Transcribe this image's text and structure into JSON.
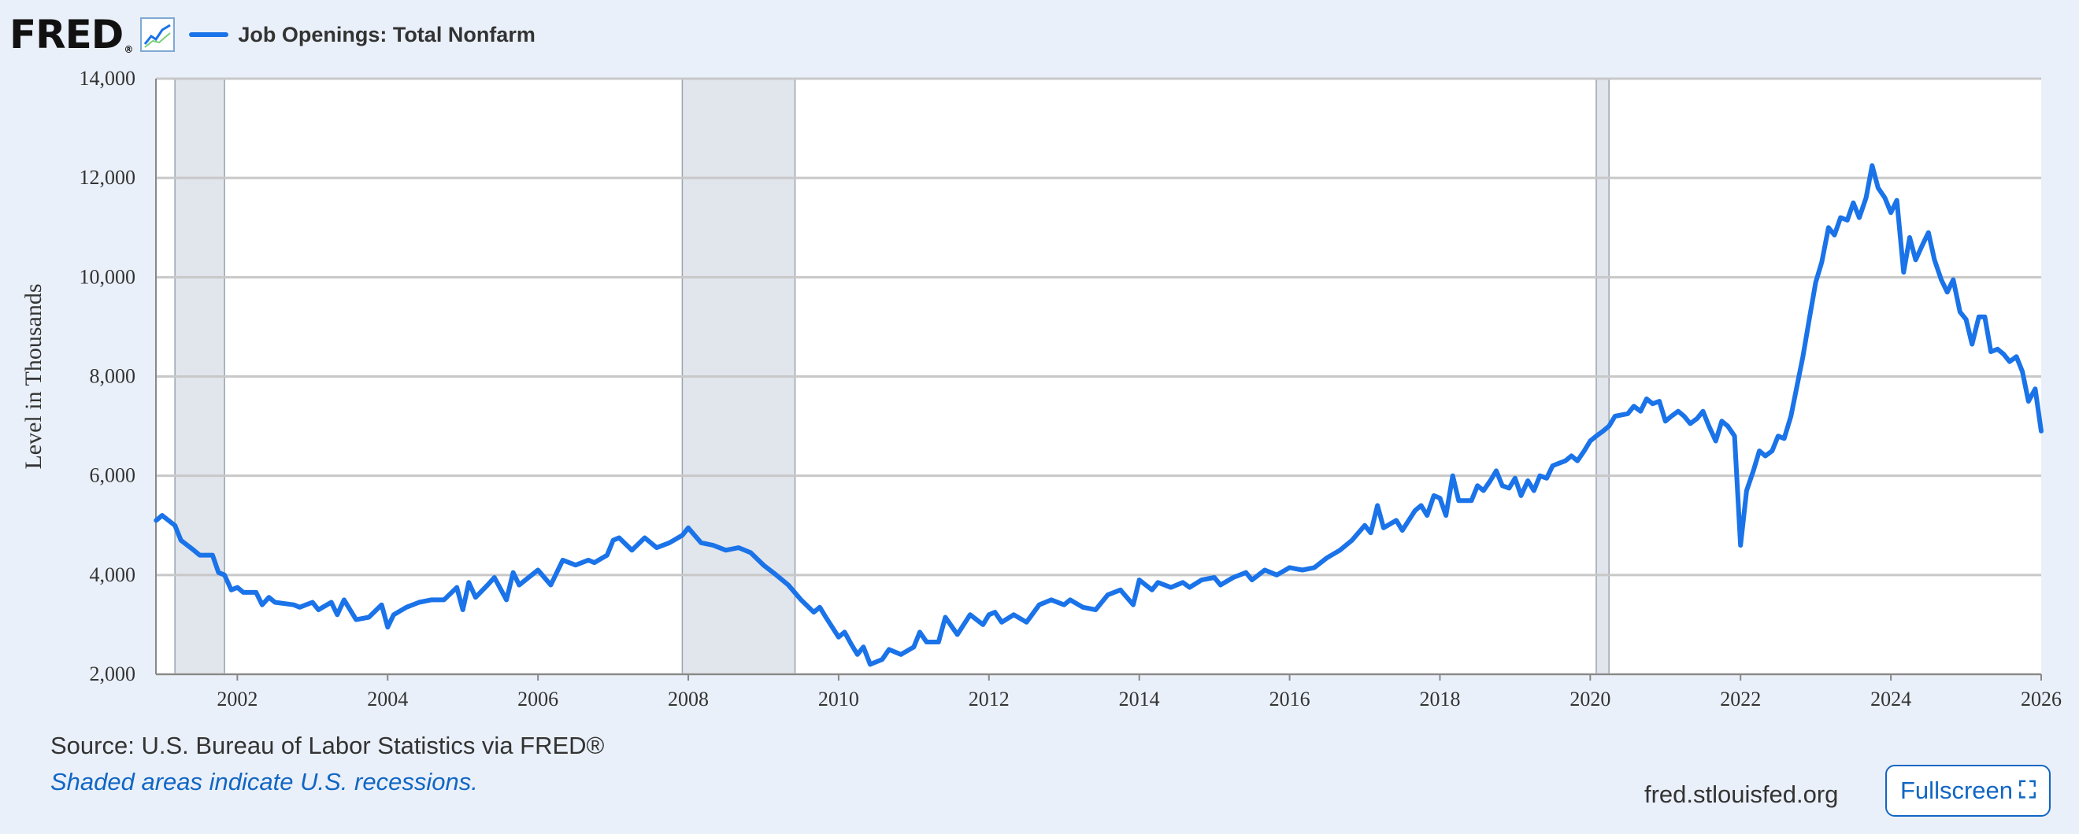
{
  "header": {
    "logo_text": "FRED",
    "logo_reg": "®",
    "logo_icon": "fred-chart-icon"
  },
  "footer": {
    "source": "Source: U.S. Bureau of Labor Statistics via FRED®",
    "note": "Shaded areas indicate U.S. recessions.",
    "site": "fred.stlouisfed.org",
    "fullscreen_label": "Fullscreen",
    "fullscreen_icon": "expand-icon"
  },
  "colors": {
    "series": "#1a73e8",
    "recession": "#e1e5ec",
    "background": "#eaf0f9",
    "link": "#1166c4"
  },
  "chart_data": {
    "type": "line",
    "title": "",
    "xlabel": "",
    "ylabel": "Level in Thousands",
    "xlim": [
      2000.917,
      2026.0
    ],
    "ylim": [
      2000,
      14000
    ],
    "x_ticks": [
      "2002",
      "2004",
      "2006",
      "2008",
      "2010",
      "2012",
      "2014",
      "2016",
      "2018",
      "2020",
      "2022",
      "2024",
      "2026"
    ],
    "y_ticks": [
      "2,000",
      "4,000",
      "6,000",
      "8,000",
      "10,000",
      "12,000",
      "14,000"
    ],
    "grid": true,
    "legend": "top-left",
    "recessions": [
      {
        "start": 2001.17,
        "end": 2001.83
      },
      {
        "start": 2007.92,
        "end": 2009.42
      },
      {
        "start": 2020.08,
        "end": 2020.25
      }
    ],
    "series": [
      {
        "name": "Job Openings: Total Nonfarm",
        "points": [
          [
            2000.92,
            5100
          ],
          [
            2001.0,
            5200
          ],
          [
            2001.17,
            5000
          ],
          [
            2001.25,
            4700
          ],
          [
            2001.42,
            4500
          ],
          [
            2001.5,
            4400
          ],
          [
            2001.67,
            4400
          ],
          [
            2001.75,
            4050
          ],
          [
            2001.83,
            4000
          ],
          [
            2001.92,
            3700
          ],
          [
            2002.0,
            3750
          ],
          [
            2002.08,
            3650
          ],
          [
            2002.25,
            3650
          ],
          [
            2002.33,
            3400
          ],
          [
            2002.42,
            3550
          ],
          [
            2002.5,
            3450
          ],
          [
            2002.75,
            3400
          ],
          [
            2002.83,
            3350
          ],
          [
            2003.0,
            3450
          ],
          [
            2003.08,
            3300
          ],
          [
            2003.25,
            3450
          ],
          [
            2003.33,
            3200
          ],
          [
            2003.42,
            3500
          ],
          [
            2003.58,
            3100
          ],
          [
            2003.75,
            3150
          ],
          [
            2003.92,
            3400
          ],
          [
            2004.0,
            2950
          ],
          [
            2004.08,
            3200
          ],
          [
            2004.25,
            3350
          ],
          [
            2004.42,
            3450
          ],
          [
            2004.58,
            3500
          ],
          [
            2004.75,
            3500
          ],
          [
            2004.92,
            3750
          ],
          [
            2005.0,
            3300
          ],
          [
            2005.08,
            3850
          ],
          [
            2005.17,
            3550
          ],
          [
            2005.33,
            3800
          ],
          [
            2005.42,
            3950
          ],
          [
            2005.58,
            3500
          ],
          [
            2005.67,
            4050
          ],
          [
            2005.75,
            3800
          ],
          [
            2006.0,
            4100
          ],
          [
            2006.17,
            3800
          ],
          [
            2006.33,
            4300
          ],
          [
            2006.5,
            4200
          ],
          [
            2006.67,
            4300
          ],
          [
            2006.75,
            4250
          ],
          [
            2006.92,
            4400
          ],
          [
            2007.0,
            4700
          ],
          [
            2007.08,
            4750
          ],
          [
            2007.25,
            4500
          ],
          [
            2007.42,
            4750
          ],
          [
            2007.58,
            4550
          ],
          [
            2007.75,
            4650
          ],
          [
            2007.92,
            4800
          ],
          [
            2008.0,
            4950
          ],
          [
            2008.17,
            4650
          ],
          [
            2008.33,
            4600
          ],
          [
            2008.5,
            4500
          ],
          [
            2008.67,
            4550
          ],
          [
            2008.83,
            4450
          ],
          [
            2009.0,
            4200
          ],
          [
            2009.17,
            4000
          ],
          [
            2009.33,
            3800
          ],
          [
            2009.5,
            3500
          ],
          [
            2009.67,
            3250
          ],
          [
            2009.75,
            3350
          ],
          [
            2009.83,
            3150
          ],
          [
            2010.0,
            2750
          ],
          [
            2010.08,
            2850
          ],
          [
            2010.17,
            2600
          ],
          [
            2010.25,
            2400
          ],
          [
            2010.33,
            2550
          ],
          [
            2010.42,
            2200
          ],
          [
            2010.58,
            2300
          ],
          [
            2010.67,
            2500
          ],
          [
            2010.83,
            2400
          ],
          [
            2011.0,
            2550
          ],
          [
            2011.08,
            2850
          ],
          [
            2011.17,
            2650
          ],
          [
            2011.33,
            2650
          ],
          [
            2011.42,
            3150
          ],
          [
            2011.58,
            2800
          ],
          [
            2011.75,
            3200
          ],
          [
            2011.92,
            3000
          ],
          [
            2012.0,
            3200
          ],
          [
            2012.08,
            3250
          ],
          [
            2012.17,
            3050
          ],
          [
            2012.33,
            3200
          ],
          [
            2012.5,
            3050
          ],
          [
            2012.67,
            3400
          ],
          [
            2012.83,
            3500
          ],
          [
            2013.0,
            3400
          ],
          [
            2013.08,
            3500
          ],
          [
            2013.25,
            3350
          ],
          [
            2013.42,
            3300
          ],
          [
            2013.58,
            3600
          ],
          [
            2013.75,
            3700
          ],
          [
            2013.92,
            3400
          ],
          [
            2014.0,
            3900
          ],
          [
            2014.17,
            3700
          ],
          [
            2014.25,
            3850
          ],
          [
            2014.42,
            3750
          ],
          [
            2014.58,
            3850
          ],
          [
            2014.67,
            3750
          ],
          [
            2014.83,
            3900
          ],
          [
            2015.0,
            3950
          ],
          [
            2015.08,
            3800
          ],
          [
            2015.25,
            3950
          ],
          [
            2015.42,
            4050
          ],
          [
            2015.5,
            3900
          ],
          [
            2015.67,
            4100
          ],
          [
            2015.83,
            4000
          ],
          [
            2016.0,
            4150
          ],
          [
            2016.17,
            4100
          ],
          [
            2016.33,
            4150
          ],
          [
            2016.5,
            4350
          ],
          [
            2016.67,
            4500
          ],
          [
            2016.83,
            4700
          ],
          [
            2017.0,
            5000
          ],
          [
            2017.08,
            4850
          ],
          [
            2017.17,
            5400
          ],
          [
            2017.25,
            4950
          ],
          [
            2017.42,
            5100
          ],
          [
            2017.5,
            4900
          ],
          [
            2017.67,
            5300
          ],
          [
            2017.75,
            5400
          ],
          [
            2017.83,
            5200
          ],
          [
            2017.92,
            5600
          ],
          [
            2018.0,
            5550
          ],
          [
            2018.08,
            5200
          ],
          [
            2018.17,
            6000
          ],
          [
            2018.25,
            5500
          ],
          [
            2018.42,
            5500
          ],
          [
            2018.5,
            5800
          ],
          [
            2018.58,
            5700
          ],
          [
            2018.67,
            5900
          ],
          [
            2018.75,
            6100
          ],
          [
            2018.83,
            5800
          ],
          [
            2018.92,
            5750
          ],
          [
            2019.0,
            5950
          ],
          [
            2019.08,
            5600
          ],
          [
            2019.17,
            5900
          ],
          [
            2019.25,
            5700
          ],
          [
            2019.33,
            6000
          ],
          [
            2019.42,
            5950
          ],
          [
            2019.5,
            6200
          ],
          [
            2019.58,
            6250
          ],
          [
            2019.67,
            6300
          ],
          [
            2019.75,
            6400
          ],
          [
            2019.83,
            6300
          ],
          [
            2019.92,
            6500
          ],
          [
            2020.0,
            6700
          ],
          [
            2020.08,
            6800
          ],
          [
            2020.17,
            6900
          ],
          [
            2020.25,
            7000
          ],
          [
            2020.33,
            7200
          ],
          [
            2020.5,
            7250
          ],
          [
            2020.58,
            7400
          ],
          [
            2020.67,
            7300
          ],
          [
            2020.75,
            7550
          ],
          [
            2020.83,
            7450
          ],
          [
            2020.92,
            7500
          ],
          [
            2021.0,
            7100
          ],
          [
            2021.08,
            7200
          ],
          [
            2021.17,
            7300
          ],
          [
            2021.25,
            7200
          ],
          [
            2021.33,
            7050
          ],
          [
            2021.42,
            7150
          ],
          [
            2021.5,
            7300
          ],
          [
            2021.58,
            7000
          ],
          [
            2021.67,
            6700
          ],
          [
            2021.75,
            7100
          ],
          [
            2021.83,
            7000
          ],
          [
            2021.92,
            6800
          ],
          [
            2022.0,
            4600
          ],
          [
            2022.08,
            5700
          ],
          [
            2022.17,
            6100
          ],
          [
            2022.25,
            6500
          ],
          [
            2022.33,
            6400
          ],
          [
            2022.42,
            6500
          ],
          [
            2022.5,
            6800
          ],
          [
            2022.58,
            6750
          ],
          [
            2022.67,
            7200
          ],
          [
            2022.75,
            7800
          ],
          [
            2022.83,
            8400
          ],
          [
            2022.92,
            9200
          ],
          [
            2023.0,
            9900
          ],
          [
            2023.08,
            10300
          ],
          [
            2023.17,
            11000
          ],
          [
            2023.25,
            10850
          ],
          [
            2023.33,
            11200
          ],
          [
            2023.42,
            11150
          ],
          [
            2023.5,
            11500
          ],
          [
            2023.58,
            11200
          ],
          [
            2023.67,
            11600
          ],
          [
            2023.75,
            12250
          ],
          [
            2023.83,
            11800
          ],
          [
            2023.92,
            11600
          ],
          [
            2024.0,
            11300
          ],
          [
            2024.08,
            11550
          ],
          [
            2024.17,
            10100
          ],
          [
            2024.25,
            10800
          ],
          [
            2024.33,
            10350
          ],
          [
            2024.42,
            10650
          ],
          [
            2024.5,
            10900
          ],
          [
            2024.58,
            10350
          ],
          [
            2024.67,
            9950
          ],
          [
            2024.75,
            9700
          ],
          [
            2024.83,
            9950
          ],
          [
            2024.92,
            9300
          ],
          [
            2025.0,
            9150
          ],
          [
            2025.08,
            8650
          ],
          [
            2025.17,
            9200
          ],
          [
            2025.25,
            9200
          ],
          [
            2025.33,
            8500
          ],
          [
            2025.42,
            8550
          ],
          [
            2025.5,
            8450
          ],
          [
            2025.58,
            8300
          ],
          [
            2025.67,
            8400
          ],
          [
            2025.75,
            8100
          ],
          [
            2025.83,
            7500
          ],
          [
            2025.92,
            7750
          ],
          [
            2026.0,
            6900
          ]
        ]
      }
    ]
  }
}
